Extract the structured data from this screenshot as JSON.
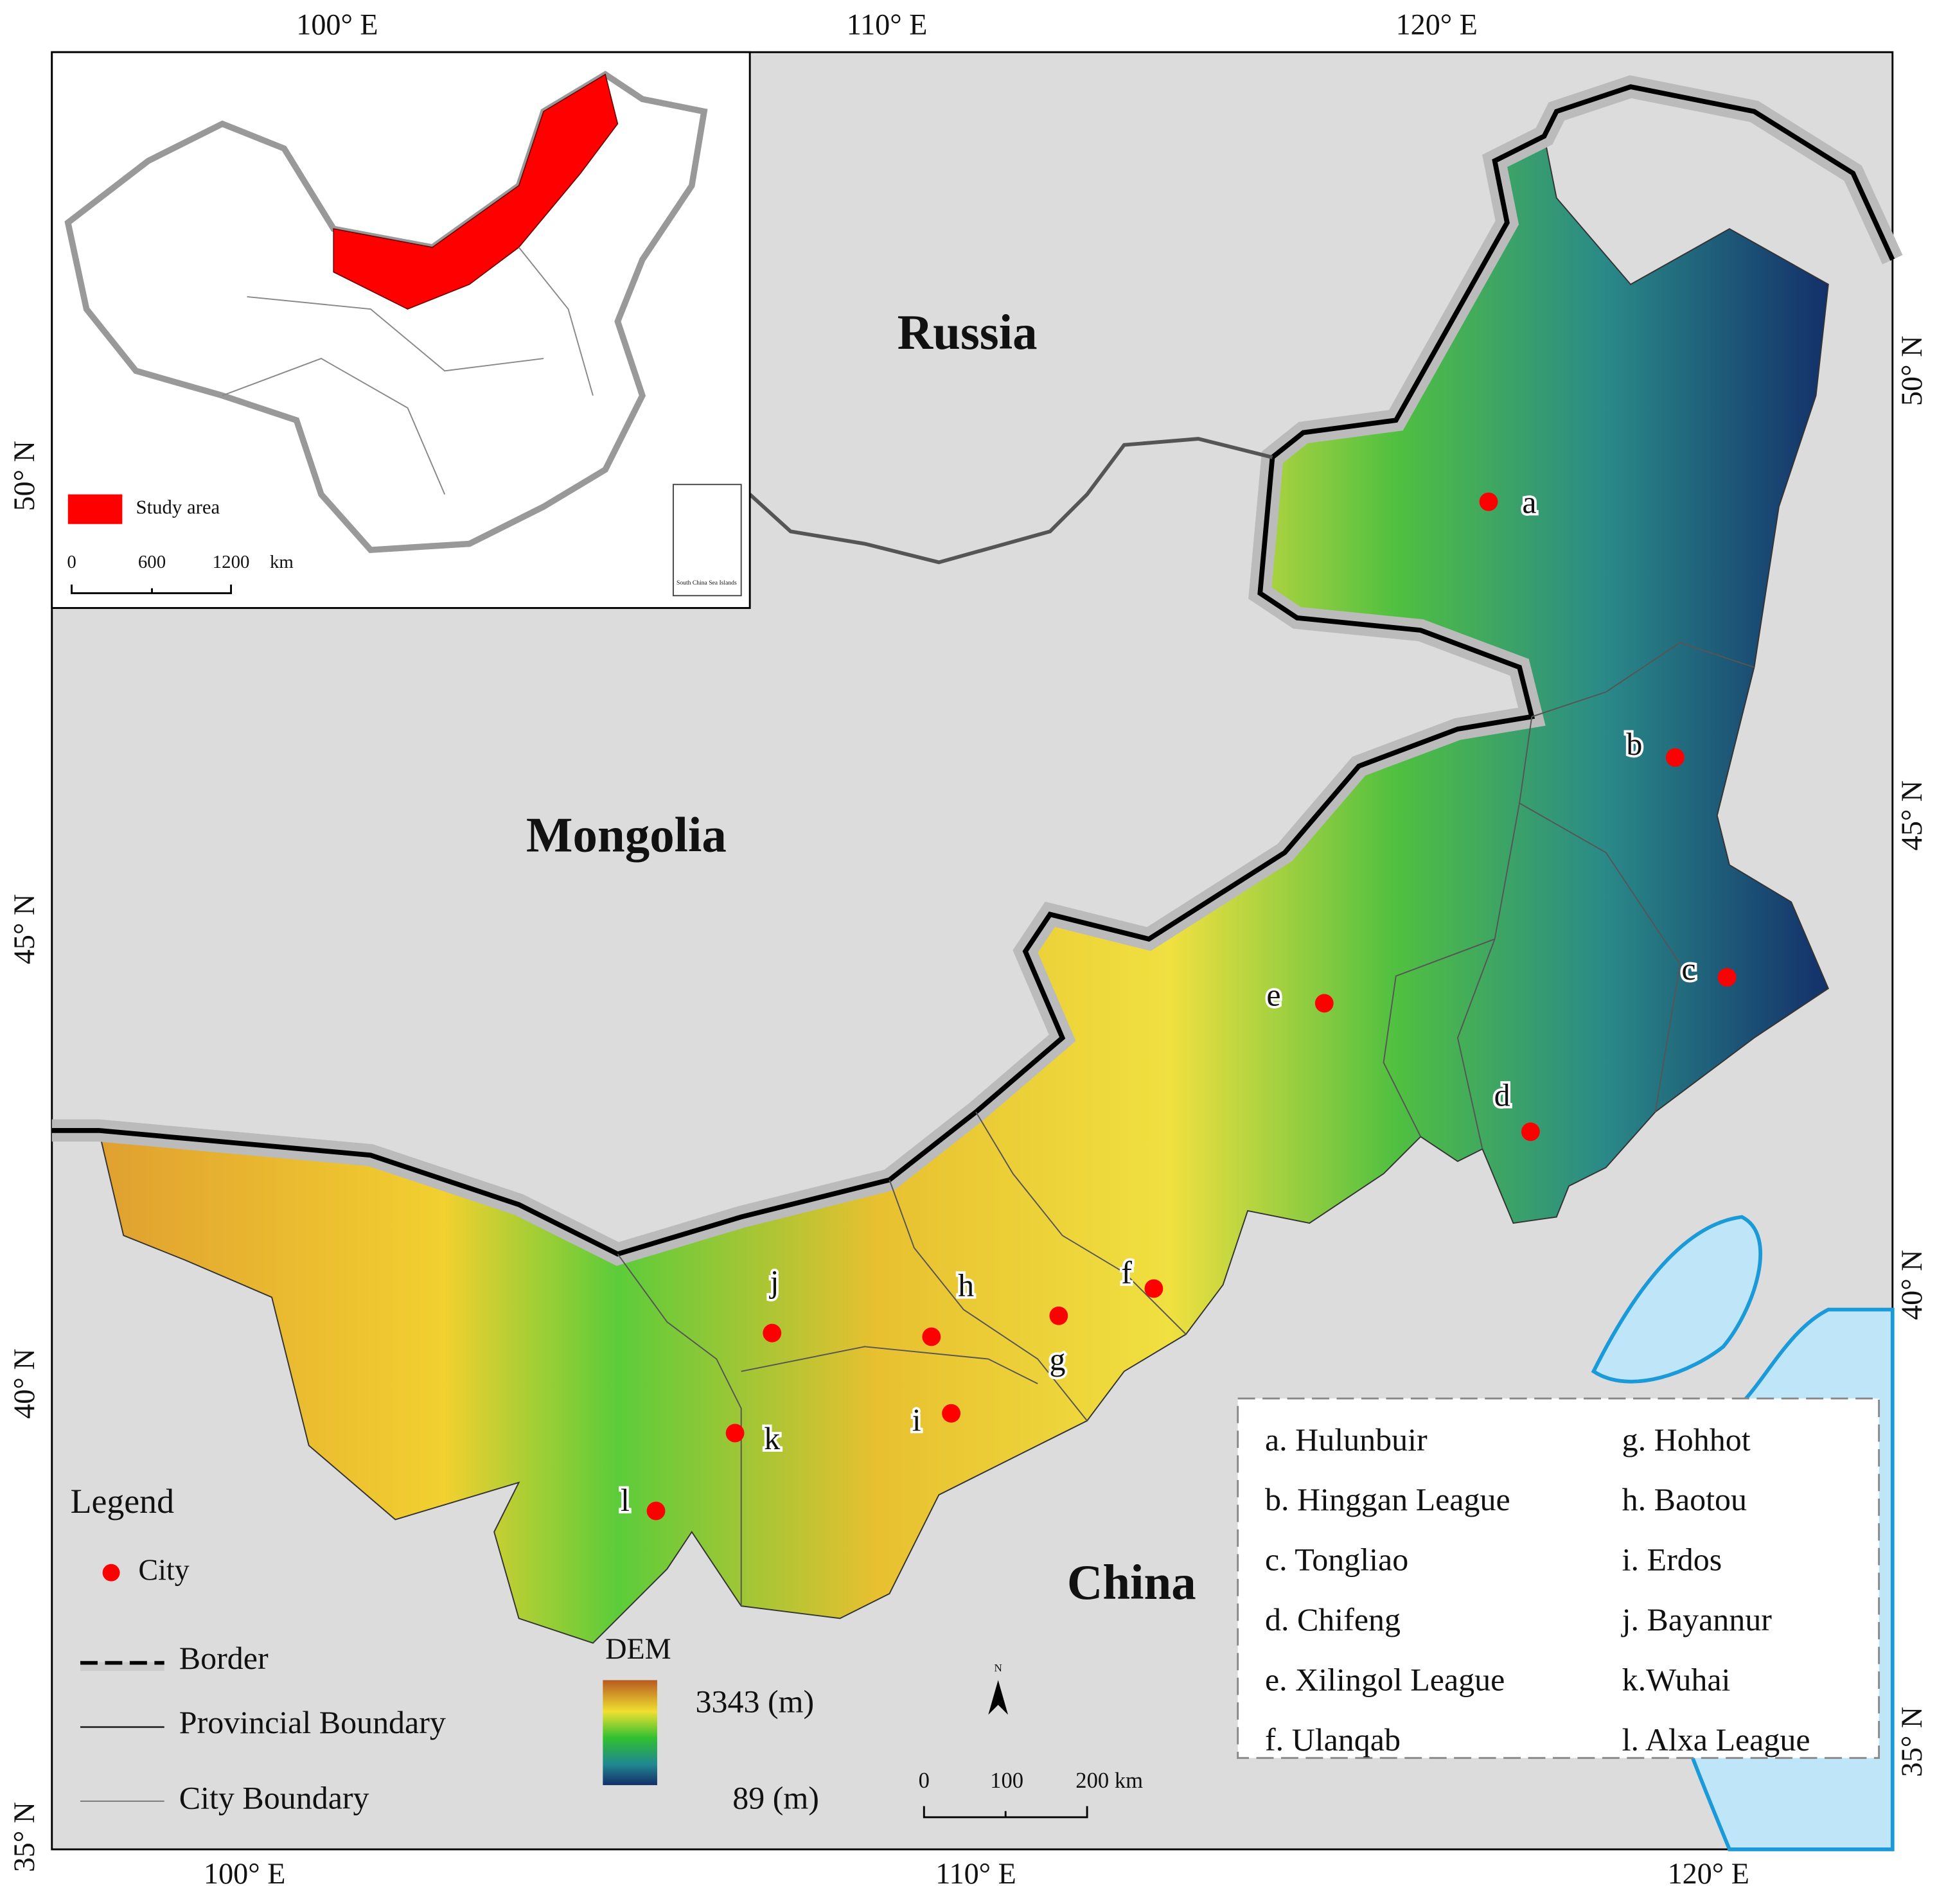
{
  "axes": {
    "top": [
      "100° E",
      "110° E",
      "120° E"
    ],
    "bottom": [
      "100° E",
      "110° E",
      "120° E"
    ],
    "left": [
      "50° N",
      "45° N",
      "40° N",
      "35° N"
    ],
    "right": [
      "50° N",
      "45° N",
      "40° N",
      "35° N"
    ]
  },
  "countries": [
    "Russia",
    "Mongolia",
    "China"
  ],
  "inset": {
    "legend_label": "Study area",
    "scale": [
      "0",
      "600",
      "1200",
      "km"
    ],
    "islands_label": "South China Sea Islands"
  },
  "cities": [
    "a",
    "b",
    "c",
    "d",
    "e",
    "f",
    "g",
    "h",
    "i",
    "j",
    "k",
    "l"
  ],
  "legend": {
    "title": "Legend",
    "items": [
      "City",
      "Border",
      "Provincial Boundary",
      "City Boundary"
    ]
  },
  "dem": {
    "title": "DEM",
    "high": "3343 (m)",
    "low": "89 (m)"
  },
  "scale_bar": [
    "0",
    "100",
    "200 km"
  ],
  "north": "N",
  "city_key": [
    "a. Hulunbuir",
    "b. Hinggan League",
    "c. Tongliao",
    "d. Chifeng",
    "e. Xilingol League",
    "f. Ulanqab",
    "g. Hohhot",
    "h. Baotou",
    "i. Erdos",
    "j. Bayannur",
    "k.Wuhai",
    "l. Alxa League"
  ]
}
